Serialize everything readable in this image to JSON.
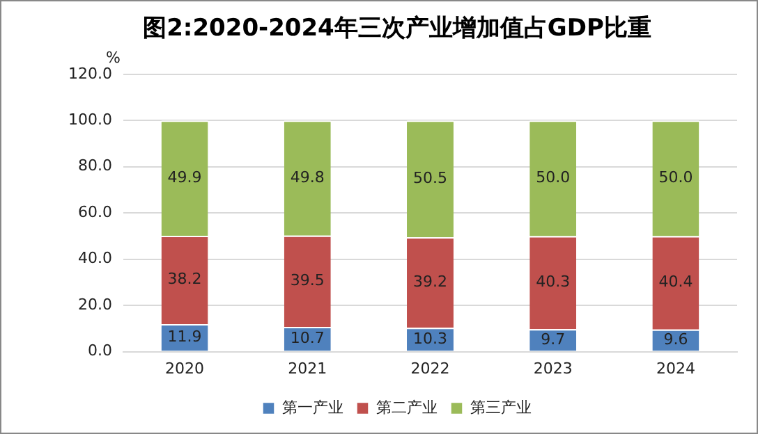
{
  "chart_data": {
    "type": "bar",
    "title": "图2:2020-2024年三次产业增加值占GDP比重",
    "ylabel": "%",
    "categories": [
      "2020",
      "2021",
      "2022",
      "2023",
      "2024"
    ],
    "stacked": true,
    "series": [
      {
        "name": "第一产业",
        "color": "#4f81bd",
        "values": [
          11.9,
          10.7,
          10.3,
          9.7,
          9.6
        ],
        "value_labels": [
          "11.9",
          "10.7",
          "10.3",
          "9.7",
          "9.6"
        ]
      },
      {
        "name": "第二产业",
        "color": "#c0504d",
        "values": [
          38.2,
          39.5,
          39.2,
          40.3,
          40.4
        ],
        "value_labels": [
          "38.2",
          "39.5",
          "39.2",
          "40.3",
          "40.4"
        ]
      },
      {
        "name": "第三产业",
        "color": "#9bbb59",
        "values": [
          49.9,
          49.8,
          50.5,
          50.0,
          50.0
        ],
        "value_labels": [
          "49.9",
          "49.8",
          "50.5",
          "50.0",
          "50.0"
        ]
      }
    ],
    "ylim": [
      0,
      120
    ],
    "yticks": [
      {
        "value": 0,
        "label": "0.0"
      },
      {
        "value": 20,
        "label": "20.0"
      },
      {
        "value": 40,
        "label": "40.0"
      },
      {
        "value": 60,
        "label": "60.0"
      },
      {
        "value": 80,
        "label": "80.0"
      },
      {
        "value": 100,
        "label": "100.0"
      },
      {
        "value": 120,
        "label": "120.0"
      }
    ],
    "grid": "y",
    "legend": "bottom"
  }
}
